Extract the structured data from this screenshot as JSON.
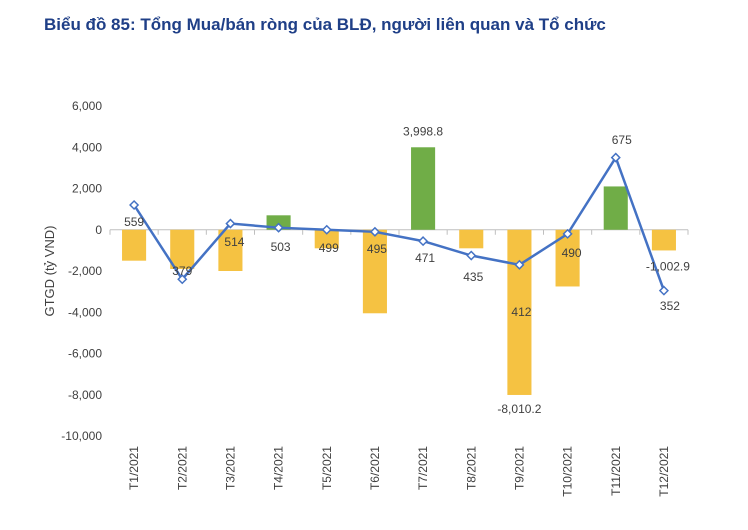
{
  "chart_data": {
    "type": "bar",
    "title": "Biểu đồ 85: Tổng Mua/bán ròng của BLĐ, người liên quan và Tổ chức",
    "ylabel": "GTGD (tỷ VND)",
    "ylim": [
      -10000,
      6000
    ],
    "yticks": [
      6000,
      4000,
      2000,
      0,
      -2000,
      -4000,
      -6000,
      -8000,
      -10000
    ],
    "ytick_labels": [
      "6,000",
      "4,000",
      "2,000",
      "0",
      "-2,000",
      "-4,000",
      "-6,000",
      "-8,000",
      "-10,000"
    ],
    "categories": [
      "T1/2021",
      "T2/2021",
      "T3/2021",
      "T4/2021",
      "T5/2021",
      "T6/2021",
      "T7/2021",
      "T8/2021",
      "T9/2021",
      "T10/2021",
      "T11/2021",
      "T12/2021"
    ],
    "grid": false,
    "legend": "none",
    "series": [
      {
        "type": "bar",
        "values": [
          -1500,
          -1900,
          -2000,
          700,
          -900,
          -4050,
          3998.8,
          -900,
          -8010.2,
          -2750,
          2100,
          -1002.9
        ],
        "colors_by_sign": {
          "positive": "#70ad47",
          "negative": "#f5c242"
        },
        "labels": [
          "",
          "",
          "",
          "",
          "",
          "",
          "3,998.8",
          "",
          "-8,010.2",
          "",
          "",
          "-1,002.9"
        ]
      },
      {
        "type": "line",
        "values": [
          1200,
          -2400,
          300,
          100,
          0,
          -100,
          -550,
          -1250,
          -1700,
          -200,
          3500,
          -2950
        ],
        "color": "#4472c4",
        "labels": [
          "559",
          "379",
          "514",
          "503",
          "499",
          "495",
          "471",
          "435",
          "412",
          "490",
          "675",
          "352"
        ]
      }
    ]
  }
}
